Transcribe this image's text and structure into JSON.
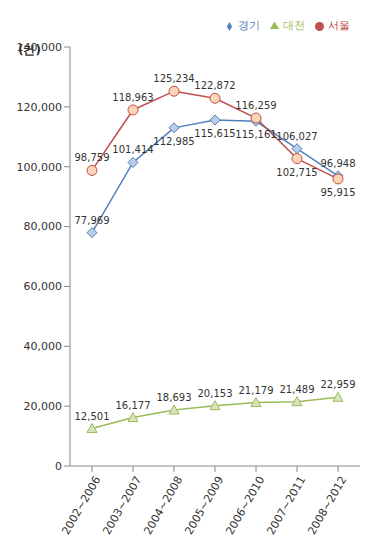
{
  "chart_data": {
    "type": "line",
    "y_label": "(건)",
    "categories": [
      "2002~2006",
      "2003~2007",
      "2004~2008",
      "2005~2009",
      "2006~2010",
      "2007~2011",
      "2008~2012"
    ],
    "series": [
      {
        "name": "경기",
        "color": "#4f81bd",
        "marker": "diamond",
        "values": [
          77969,
          101414,
          112985,
          115615,
          115161,
          106027,
          96948
        ],
        "value_labels": [
          "77,969",
          "101,414",
          "112,985",
          "115,615",
          "115,161",
          "106,027",
          "96,948"
        ]
      },
      {
        "name": "서울",
        "color": "#c0504d",
        "marker": "circle",
        "values": [
          98759,
          118963,
          125234,
          122872,
          116259,
          102715,
          95915
        ],
        "value_labels": [
          "98,759",
          "118,963",
          "125,234",
          "122,872",
          "116,259",
          "102,715",
          "95,915"
        ]
      },
      {
        "name": "대전",
        "color": "#9bbb59",
        "marker": "triangle",
        "values": [
          12501,
          16177,
          18693,
          20153,
          21179,
          21489,
          22959
        ],
        "value_labels": [
          "12,501",
          "16,177",
          "18,693",
          "20,153",
          "21,179",
          "21,489",
          "22,959"
        ]
      }
    ],
    "ylim": [
      0,
      140000
    ],
    "yticks": [
      0,
      {
        "value": 20000,
        "label": "20,000"
      },
      {
        "value": 40000,
        "label": "40,000"
      },
      {
        "value": 60000,
        "label": "60,000"
      },
      {
        "value": 80000,
        "label": "80,000"
      },
      {
        "value": 100000,
        "label": "100,000"
      },
      {
        "value": 120000,
        "label": "120,000"
      },
      {
        "value": 140000,
        "label": "140,000"
      }
    ],
    "grid": false,
    "legend": "top right",
    "data_labels": true
  }
}
